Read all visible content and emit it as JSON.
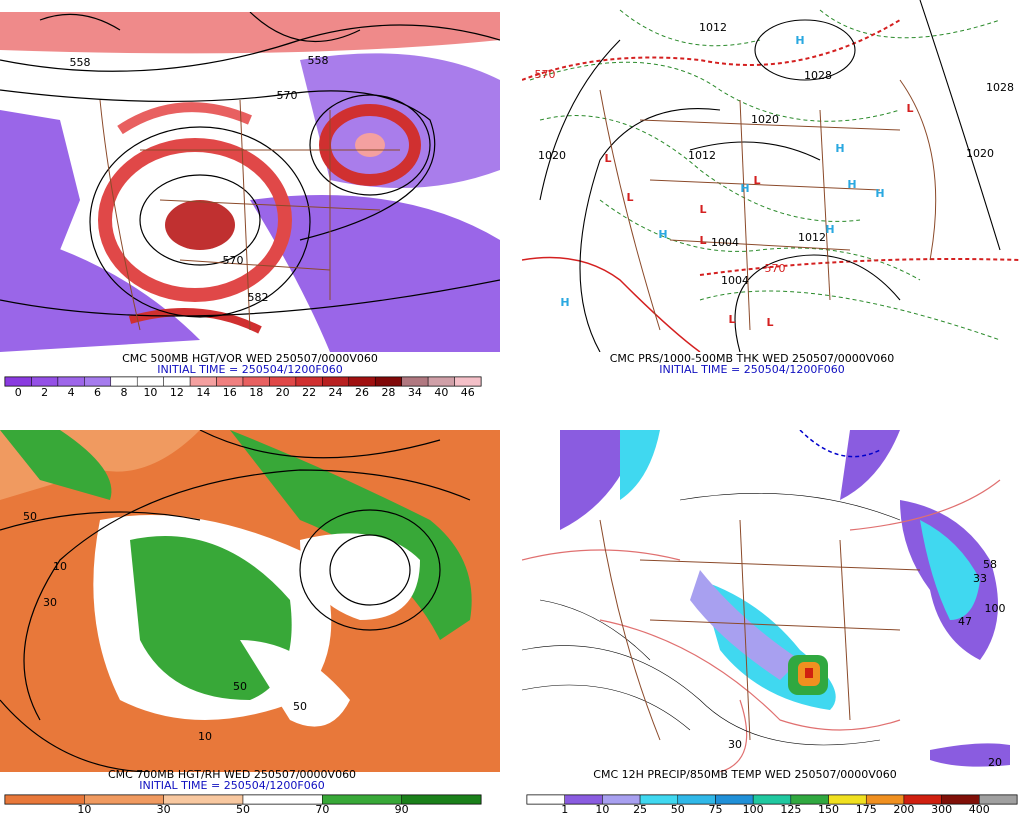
{
  "panels": [
    {
      "title": "CMC 500MB HGT/VOR WED 250507/0000V060",
      "initial_time": "INITIAL TIME = 250504/1200F060",
      "legend": {
        "labels": [
          0,
          2,
          4,
          6,
          8,
          10,
          12,
          14,
          16,
          18,
          20,
          22,
          24,
          26,
          28,
          34,
          40,
          46
        ],
        "colors": [
          "#8a3be0",
          "#9450e6",
          "#9e66ea",
          "#a67cee",
          "#ffffff",
          "#ffffff",
          "#ffffff",
          "#f4a0a0",
          "#f08080",
          "#e86060",
          "#e04848",
          "#d03030",
          "#b82020",
          "#a01010",
          "#800808",
          "#b07880",
          "#d0a0a8",
          "#f4c0c8"
        ]
      },
      "map_labels": [
        {
          "text": "558",
          "color": "#000000"
        },
        {
          "text": "558",
          "color": "#000000"
        },
        {
          "text": "570",
          "color": "#000000"
        },
        {
          "text": "570",
          "color": "#000000"
        },
        {
          "text": "582",
          "color": "#000000"
        }
      ]
    },
    {
      "title": "CMC PRS/1000-500MB THK WED 250507/0000V060",
      "initial_time": "INITIAL TIME = 250504/1200F060",
      "map_labels": [
        {
          "text": "H",
          "color": "#2aa8e0"
        },
        {
          "text": "H",
          "color": "#2aa8e0"
        },
        {
          "text": "H",
          "color": "#2aa8e0"
        },
        {
          "text": "H",
          "color": "#2aa8e0"
        },
        {
          "text": "H",
          "color": "#2aa8e0"
        },
        {
          "text": "H",
          "color": "#2aa8e0"
        },
        {
          "text": "H",
          "color": "#2aa8e0"
        },
        {
          "text": "H",
          "color": "#2aa8e0"
        },
        {
          "text": "L",
          "color": "#d42020"
        },
        {
          "text": "L",
          "color": "#d42020"
        },
        {
          "text": "L",
          "color": "#d42020"
        },
        {
          "text": "L",
          "color": "#d42020"
        },
        {
          "text": "L",
          "color": "#d42020"
        },
        {
          "text": "L",
          "color": "#d42020"
        },
        {
          "text": "L",
          "color": "#d42020"
        },
        {
          "text": "L",
          "color": "#d42020"
        },
        {
          "text": "1020",
          "color": "#000000"
        },
        {
          "text": "1028",
          "color": "#000000"
        },
        {
          "text": "1020",
          "color": "#000000"
        },
        {
          "text": "1012",
          "color": "#000000"
        },
        {
          "text": "1004",
          "color": "#000000"
        },
        {
          "text": "1012",
          "color": "#000000"
        },
        {
          "text": "1004",
          "color": "#000000"
        },
        {
          "text": "1028",
          "color": "#000000"
        },
        {
          "text": "1020",
          "color": "#000000"
        },
        {
          "text": "1012",
          "color": "#000000"
        },
        {
          "text": "570",
          "color": "#d42020"
        },
        {
          "text": "570",
          "color": "#d42020"
        }
      ]
    },
    {
      "title": "CMC 700MB HGT/RH WED 250507/0000V060",
      "initial_time": "INITIAL TIME = 250504/1200F060",
      "legend": {
        "labels": [
          10,
          30,
          50,
          70,
          90
        ],
        "colors": [
          "#e8783a",
          "#f09a60",
          "#f8c8a0",
          "#ffffff",
          "#38a838",
          "#1a801a"
        ]
      },
      "map_labels": [
        {
          "text": "30",
          "color": "#000000"
        },
        {
          "text": "10",
          "color": "#000000"
        },
        {
          "text": "50",
          "color": "#000000"
        },
        {
          "text": "50",
          "color": "#000000"
        },
        {
          "text": "10",
          "color": "#000000"
        },
        {
          "text": "50",
          "color": "#000000"
        }
      ]
    },
    {
      "title": "CMC 12H PRECIP/850MB TEMP WED 250507/0000V060",
      "legend": {
        "labels": [
          1,
          10,
          25,
          50,
          75,
          100,
          125,
          150,
          175,
          200,
          300,
          400
        ],
        "colors": [
          "#ffffff",
          "#8a5ce0",
          "#a8a0f0",
          "#40d8f0",
          "#30b8e8",
          "#2090d8",
          "#20c8a0",
          "#30a840",
          "#f0e020",
          "#f09020",
          "#d02010",
          "#801008",
          "#a0a0a0"
        ]
      },
      "map_labels": [
        {
          "text": "58",
          "color": "#000000"
        },
        {
          "text": "33",
          "color": "#000000"
        },
        {
          "text": "100",
          "color": "#000000"
        },
        {
          "text": "47",
          "color": "#000000"
        },
        {
          "text": "30",
          "color": "#000000"
        },
        {
          "text": "20",
          "color": "#000000"
        }
      ]
    }
  ]
}
